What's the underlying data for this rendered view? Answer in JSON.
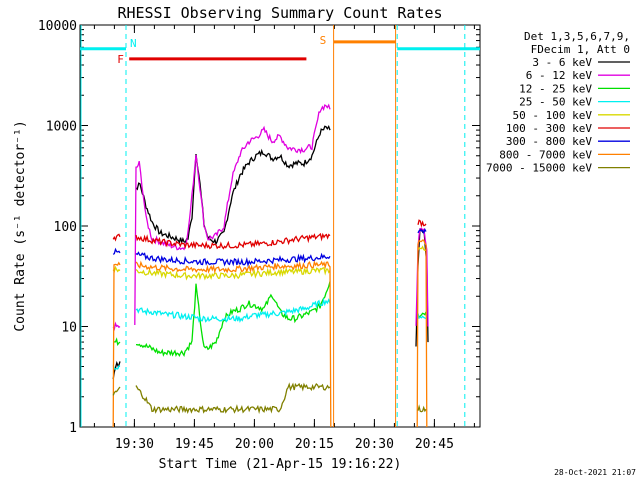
{
  "chart_data": {
    "type": "line",
    "title": "RHESSI Observing Summary Count Rates",
    "xlabel": "Start Time (21-Apr-15 19:16:22)",
    "ylabel": "Count Rate (s⁻¹ detector⁻¹)",
    "yscale": "log",
    "ylim": [
      1,
      10000
    ],
    "xlim_minutes": [
      0,
      100
    ],
    "y_ticks": [
      {
        "value": 1,
        "label": "1"
      },
      {
        "value": 10,
        "label": "10"
      },
      {
        "value": 100,
        "label": "100"
      },
      {
        "value": 1000,
        "label": "1000"
      },
      {
        "value": 10000,
        "label": "10000"
      }
    ],
    "x_ticks": [
      {
        "min": 13.6,
        "label": "19:30"
      },
      {
        "min": 28.6,
        "label": "19:45"
      },
      {
        "min": 43.6,
        "label": "20:00"
      },
      {
        "min": 58.6,
        "label": "20:15"
      },
      {
        "min": 73.6,
        "label": "20:30"
      },
      {
        "min": 88.6,
        "label": "20:45"
      }
    ],
    "legend": {
      "position": "top-right",
      "header": [
        "Det 1,3,5,6,7,9,",
        "FDecim 1, Att 0"
      ],
      "entries": [
        {
          "label": "3 - 6 keV",
          "color": "#000000"
        },
        {
          "label": "6 - 12 keV",
          "color": "#e000e0"
        },
        {
          "label": "12 - 25 keV",
          "color": "#00e000"
        },
        {
          "label": "25 - 50 keV",
          "color": "#00f0f0"
        },
        {
          "label": "50 - 100 keV",
          "color": "#d8d800"
        },
        {
          "label": "100 - 300 keV",
          "color": "#e00000"
        },
        {
          "label": "300 - 800 keV",
          "color": "#0000e0"
        },
        {
          "label": "800 - 7000 keV",
          "color": "#ff8000"
        },
        {
          "label": "7000 - 15000 keV",
          "color": "#808000"
        }
      ]
    },
    "series": [
      {
        "name": "3 - 6 keV",
        "color": "#000000",
        "segments": [
          [
            [
              8.3,
              3
            ],
            [
              8.8,
              4
            ],
            [
              9.2,
              4.5
            ],
            [
              9.6,
              4
            ],
            [
              10,
              4.5
            ]
          ],
          [
            [
              14,
              240
            ],
            [
              15,
              260
            ],
            [
              16.5,
              160
            ],
            [
              18,
              110
            ],
            [
              20,
              85
            ],
            [
              22,
              80
            ],
            [
              24,
              75
            ],
            [
              26,
              70
            ],
            [
              27,
              75
            ],
            [
              28,
              125
            ],
            [
              29,
              550
            ],
            [
              30,
              260
            ],
            [
              31,
              105
            ],
            [
              32,
              75
            ],
            [
              34,
              70
            ],
            [
              36,
              85
            ],
            [
              38,
              200
            ],
            [
              40,
              320
            ],
            [
              42,
              420
            ],
            [
              44,
              500
            ],
            [
              46,
              550
            ],
            [
              48,
              470
            ],
            [
              50,
              500
            ],
            [
              52,
              400
            ],
            [
              54,
              420
            ],
            [
              56,
              420
            ],
            [
              58,
              500
            ],
            [
              60,
              850
            ],
            [
              61.5,
              950
            ],
            [
              62.5,
              900
            ]
          ],
          [
            [
              84,
              6
            ],
            [
              84.5,
              40
            ],
            [
              85,
              90
            ],
            [
              86,
              85
            ],
            [
              86.7,
              40
            ],
            [
              87,
              7
            ]
          ]
        ]
      },
      {
        "name": "6 - 12 keV",
        "color": "#e000e0",
        "segments": [
          [
            [
              8.3,
              10
            ],
            [
              10,
              10
            ]
          ],
          [
            [
              13.7,
              10
            ],
            [
              14,
              370
            ],
            [
              14.8,
              420
            ],
            [
              15.5,
              260
            ],
            [
              16.5,
              120
            ],
            [
              18,
              75
            ],
            [
              20,
              70
            ],
            [
              22,
              65
            ],
            [
              24,
              62
            ],
            [
              26,
              60
            ],
            [
              27,
              85
            ],
            [
              28,
              200
            ],
            [
              29,
              530
            ],
            [
              30,
              240
            ],
            [
              31,
              105
            ],
            [
              32,
              75
            ],
            [
              34,
              80
            ],
            [
              36,
              100
            ],
            [
              38,
              300
            ],
            [
              40,
              520
            ],
            [
              42,
              680
            ],
            [
              44,
              760
            ],
            [
              46,
              900
            ],
            [
              48,
              700
            ],
            [
              50,
              780
            ],
            [
              52,
              600
            ],
            [
              54,
              580
            ],
            [
              56,
              580
            ],
            [
              58,
              620
            ],
            [
              60,
              1450
            ],
            [
              61.5,
              1600
            ],
            [
              62.5,
              1450
            ]
          ],
          [
            [
              84,
              10
            ],
            [
              84.5,
              60
            ],
            [
              85,
              100
            ],
            [
              86,
              95
            ],
            [
              86.7,
              60
            ],
            [
              87,
              10
            ]
          ]
        ]
      },
      {
        "name": "12 - 25 keV",
        "color": "#00e000",
        "segments": [
          [
            [
              8.3,
              7
            ],
            [
              10,
              7
            ]
          ],
          [
            [
              14,
              7
            ],
            [
              16,
              6.5
            ],
            [
              18,
              6
            ],
            [
              20,
              5.5
            ],
            [
              22,
              5.5
            ],
            [
              24,
              5.5
            ],
            [
              26,
              5.5
            ],
            [
              28,
              7
            ],
            [
              29,
              25
            ],
            [
              30,
              12
            ],
            [
              31,
              6
            ],
            [
              32,
              6
            ],
            [
              34,
              7
            ],
            [
              36,
              12
            ],
            [
              38,
              14
            ],
            [
              40,
              15
            ],
            [
              42,
              17
            ],
            [
              44,
              16
            ],
            [
              46,
              15
            ],
            [
              48,
              21
            ],
            [
              50,
              14
            ],
            [
              52,
              12
            ],
            [
              54,
              12
            ],
            [
              56,
              13
            ],
            [
              58,
              14
            ],
            [
              60,
              16
            ],
            [
              61.5,
              22
            ],
            [
              62.5,
              28
            ]
          ],
          [
            [
              84.5,
              13
            ],
            [
              86.5,
              14
            ]
          ]
        ]
      },
      {
        "name": "25 - 50 keV",
        "color": "#00f0f0",
        "segments": [
          [
            [
              8.3,
              4
            ],
            [
              10,
              4
            ]
          ],
          [
            [
              14,
              15
            ],
            [
              16,
              14
            ],
            [
              18,
              14
            ],
            [
              20,
              13.5
            ],
            [
              22,
              13
            ],
            [
              24,
              13
            ],
            [
              26,
              12.5
            ],
            [
              28,
              12.5
            ],
            [
              30,
              12
            ],
            [
              32,
              12
            ],
            [
              34,
              12
            ],
            [
              36,
              12
            ],
            [
              38,
              12
            ],
            [
              40,
              12
            ],
            [
              42,
              12.5
            ],
            [
              44,
              13
            ],
            [
              46,
              13
            ],
            [
              48,
              13.5
            ],
            [
              50,
              13.5
            ],
            [
              52,
              14
            ],
            [
              54,
              14.5
            ],
            [
              56,
              15
            ],
            [
              58,
              16
            ],
            [
              60,
              17
            ],
            [
              61.5,
              18
            ],
            [
              62.5,
              17
            ]
          ],
          [
            [
              84.5,
              13
            ],
            [
              86.5,
              12
            ]
          ]
        ]
      },
      {
        "name": "50 - 100 keV",
        "color": "#d8d800",
        "segments": [
          [
            [
              8.3,
              38
            ],
            [
              10,
              36
            ]
          ],
          [
            [
              14,
              36
            ],
            [
              18,
              34
            ],
            [
              22,
              33
            ],
            [
              26,
              32
            ],
            [
              30,
              32
            ],
            [
              34,
              32
            ],
            [
              38,
              32
            ],
            [
              42,
              33
            ],
            [
              46,
              34
            ],
            [
              50,
              35
            ],
            [
              54,
              35
            ],
            [
              58,
              36
            ],
            [
              62.5,
              36
            ]
          ],
          [
            [
              84.5,
              60
            ],
            [
              86.5,
              58
            ]
          ]
        ]
      },
      {
        "name": "100 - 300 keV",
        "color": "#e00000",
        "segments": [
          [
            [
              8.3,
              78
            ],
            [
              10,
              78
            ]
          ],
          [
            [
              14,
              78
            ],
            [
              18,
              72
            ],
            [
              22,
              68
            ],
            [
              26,
              65
            ],
            [
              30,
              64
            ],
            [
              34,
              64
            ],
            [
              38,
              64
            ],
            [
              42,
              65
            ],
            [
              46,
              67
            ],
            [
              50,
              70
            ],
            [
              54,
              74
            ],
            [
              58,
              77
            ],
            [
              62.5,
              80
            ]
          ],
          [
            [
              84.5,
              110
            ],
            [
              86.5,
              105
            ]
          ]
        ]
      },
      {
        "name": "300 - 800 keV",
        "color": "#0000e0",
        "segments": [
          [
            [
              8.3,
              55
            ],
            [
              10,
              54
            ]
          ],
          [
            [
              14,
              52
            ],
            [
              18,
              48
            ],
            [
              22,
              46
            ],
            [
              26,
              45
            ],
            [
              30,
              44
            ],
            [
              34,
              44
            ],
            [
              38,
              44
            ],
            [
              42,
              44
            ],
            [
              46,
              45
            ],
            [
              50,
              46
            ],
            [
              54,
              47
            ],
            [
              58,
              48
            ],
            [
              62.5,
              50
            ]
          ],
          [
            [
              84.5,
              90
            ],
            [
              86.5,
              88
            ]
          ]
        ]
      },
      {
        "name": "800 - 7000 keV",
        "color": "#ff8000",
        "segments": [
          [
            [
              8.3,
              1
            ],
            [
              8.5,
              42
            ],
            [
              10,
              41
            ]
          ],
          [
            [
              14,
              41
            ],
            [
              18,
              39
            ],
            [
              22,
              38
            ],
            [
              26,
              37
            ],
            [
              30,
              37
            ],
            [
              34,
              37
            ],
            [
              38,
              37
            ],
            [
              42,
              38
            ],
            [
              46,
              39
            ],
            [
              50,
              40
            ],
            [
              54,
              40
            ],
            [
              58,
              41
            ],
            [
              62.5,
              41
            ],
            [
              62.7,
              1
            ]
          ],
          [
            [
              84.3,
              1
            ],
            [
              84.5,
              70
            ],
            [
              86.5,
              68
            ],
            [
              86.7,
              1
            ]
          ]
        ]
      },
      {
        "name": "7000 - 15000 keV",
        "color": "#808000",
        "segments": [
          [
            [
              8.3,
              2
            ],
            [
              10,
              2.5
            ]
          ],
          [
            [
              14,
              2.5
            ],
            [
              16,
              2
            ],
            [
              18,
              1.5
            ],
            [
              22,
              1.5
            ],
            [
              26,
              1.5
            ],
            [
              30,
              1.5
            ],
            [
              34,
              1.5
            ],
            [
              38,
              1.5
            ],
            [
              42,
              1.5
            ],
            [
              46,
              1.5
            ],
            [
              50,
              1.5
            ],
            [
              52,
              2.5
            ],
            [
              56,
              2.5
            ],
            [
              60,
              2.5
            ],
            [
              62.5,
              2.5
            ]
          ],
          [
            [
              84.5,
              1.5
            ],
            [
              86.5,
              1.5
            ]
          ]
        ]
      }
    ],
    "annotations": {
      "night_markers": {
        "label": "N",
        "color": "#00f0f0",
        "bars": [
          [
            0,
            11.5
          ],
          [
            79.3,
            100
          ]
        ],
        "bar_level": 5800,
        "dashed_times": [
          11.5,
          79.3,
          96.2
        ]
      },
      "flare_marker": {
        "label": "F",
        "color": "#e00000",
        "bar": [
          12.3,
          56.6
        ],
        "bar_level": 4600
      },
      "saa_marker": {
        "label": "S",
        "color": "#ff8000",
        "bar": [
          63.4,
          78.9
        ],
        "bar_level": 6800,
        "solid_times": [
          63.4,
          78.9
        ]
      }
    },
    "timestamp": "28-Oct-2021 21:07"
  }
}
